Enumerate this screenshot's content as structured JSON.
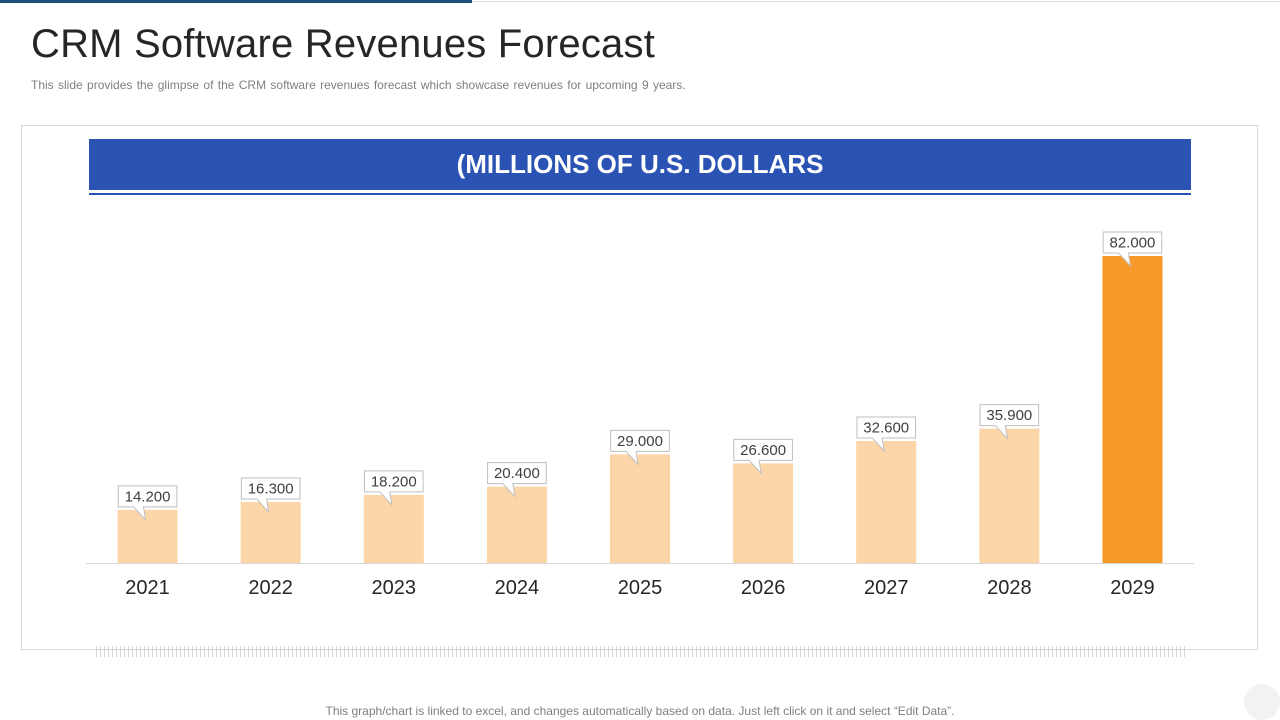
{
  "slide": {
    "title": "CRM Software Revenues Forecast",
    "subtitle": "This slide provides  the glimpse of the CRM software  revenues  forecast which showcase revenues  for upcoming  9 years.",
    "footnote": "This graph/chart is linked to excel, and changes automatically based on data. Just left click on it and select “Edit Data”."
  },
  "colors": {
    "banner": "#2a53b3",
    "bar_default": "#fcd5a8",
    "bar_highlight": "#f79a2b",
    "text": "#262626"
  },
  "chart_data": {
    "type": "bar",
    "title": "(MILLIONS OF U.S. DOLLARS",
    "categories": [
      "2021",
      "2022",
      "2023",
      "2024",
      "2025",
      "2026",
      "2027",
      "2028",
      "2029"
    ],
    "values": [
      14.2,
      16.3,
      18.2,
      20.4,
      29.0,
      26.6,
      32.6,
      35.9,
      82.0
    ],
    "labels": [
      "14.200",
      "16.300",
      "18.200",
      "20.400",
      "29.000",
      "26.600",
      "32.600",
      "35.900",
      "82.000"
    ],
    "highlight_index": 8,
    "xlabel": "",
    "ylabel": "",
    "ylim": [
      0,
      82
    ],
    "grid": false,
    "legend": "none"
  }
}
